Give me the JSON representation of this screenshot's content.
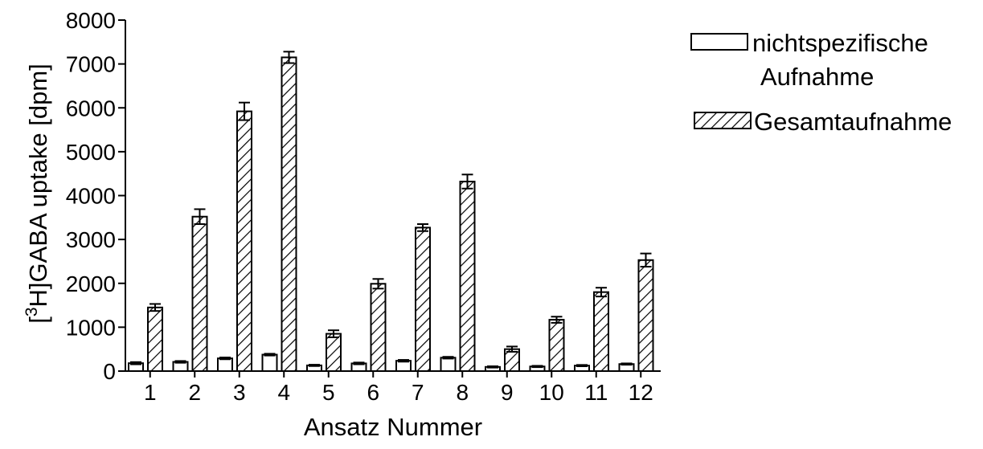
{
  "chart_data": {
    "type": "bar",
    "xlabel": "Ansatz Nummer",
    "ylabel_prefix": "[",
    "ylabel_superscript": "3",
    "ylabel_main": "H]GABA uptake [dpm]",
    "ylim": [
      0,
      8000
    ],
    "y_ticks": [
      "0",
      "1000",
      "2000",
      "3000",
      "4000",
      "5000",
      "6000",
      "7000",
      "8000"
    ],
    "categories": [
      "1",
      "2",
      "3",
      "4",
      "5",
      "6",
      "7",
      "8",
      "9",
      "10",
      "11",
      "12"
    ],
    "series": [
      {
        "name": "nichtspezifische Aufnahme",
        "legend_lines": [
          "nichtspezifische",
          "Aufnahme"
        ],
        "fill": "white",
        "values": [
          180,
          210,
          290,
          375,
          130,
          175,
          235,
          305,
          95,
          105,
          125,
          160
        ],
        "errors": [
          25,
          20,
          20,
          20,
          15,
          20,
          20,
          20,
          15,
          15,
          15,
          15
        ]
      },
      {
        "name": "Gesamtaufnahme",
        "legend_lines": [
          "Gesamtaufnahme"
        ],
        "fill": "hatched",
        "values": [
          1450,
          3520,
          5920,
          7150,
          850,
          1990,
          3270,
          4320,
          500,
          1170,
          1800,
          2530
        ],
        "errors": [
          80,
          170,
          200,
          130,
          80,
          110,
          80,
          160,
          60,
          70,
          100,
          150
        ]
      }
    ],
    "legend_position": "top-right",
    "grid": false,
    "colors": {
      "bar_stroke": "#000000",
      "bar_fill": "#ffffff",
      "hatch": "#000000"
    }
  }
}
